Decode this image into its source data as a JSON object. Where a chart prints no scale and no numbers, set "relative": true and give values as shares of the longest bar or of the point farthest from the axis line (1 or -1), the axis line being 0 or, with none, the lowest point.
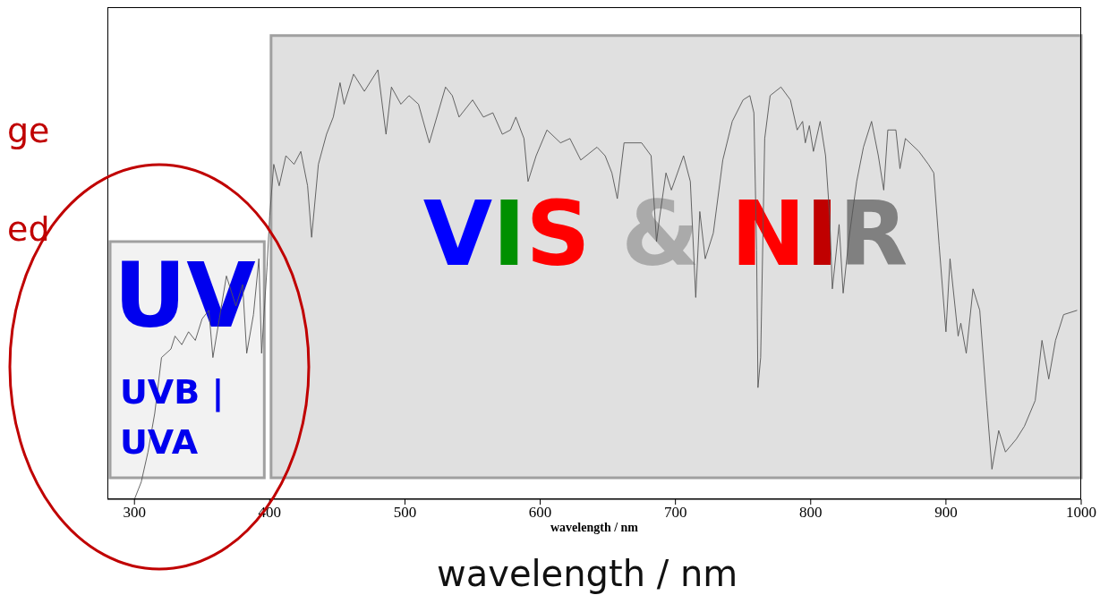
{
  "chart_data": {
    "type": "line",
    "relative": true,
    "xlabel": "wavelength / nm",
    "xlim": [
      280,
      1000
    ],
    "xticks": [
      300,
      400,
      500,
      600,
      700,
      800,
      900,
      1000
    ],
    "marker": "none",
    "line_style": "solid",
    "x": [
      300,
      305,
      310,
      315,
      320,
      327,
      330,
      335,
      340,
      345,
      350,
      355,
      358,
      368,
      375,
      380,
      383,
      388,
      392,
      394,
      398,
      400,
      403,
      407,
      412,
      418,
      423,
      428,
      431,
      436,
      442,
      447,
      452,
      455,
      462,
      470,
      480,
      486,
      490,
      497,
      503,
      510,
      518,
      530,
      535,
      540,
      550,
      558,
      565,
      572,
      578,
      582,
      588,
      591,
      597,
      605,
      615,
      622,
      630,
      642,
      648,
      653,
      657,
      662,
      675,
      682,
      686,
      688,
      693,
      697,
      706,
      711,
      715,
      718,
      722,
      728,
      735,
      742,
      750,
      755,
      758,
      760,
      761,
      763,
      766,
      770,
      778,
      785,
      790,
      794,
      796,
      799,
      802,
      807,
      811,
      814,
      816,
      821,
      824,
      828,
      834,
      839,
      845,
      850,
      854,
      857,
      863,
      866,
      870,
      880,
      887,
      891,
      895,
      900,
      903,
      909,
      911,
      915,
      920,
      925,
      930,
      934,
      939,
      944,
      952,
      958,
      966,
      971,
      976,
      981,
      987,
      997
    ],
    "series": [
      {
        "color": "#555555",
        "values": [
          0.0,
          0.04,
          0.11,
          0.2,
          0.33,
          0.35,
          0.38,
          0.36,
          0.39,
          0.37,
          0.42,
          0.44,
          0.33,
          0.52,
          0.45,
          0.5,
          0.34,
          0.43,
          0.56,
          0.34,
          0.54,
          0.66,
          0.78,
          0.73,
          0.8,
          0.78,
          0.81,
          0.73,
          0.61,
          0.78,
          0.85,
          0.89,
          0.97,
          0.92,
          0.99,
          0.95,
          1.0,
          0.85,
          0.96,
          0.92,
          0.94,
          0.92,
          0.83,
          0.96,
          0.94,
          0.89,
          0.93,
          0.89,
          0.9,
          0.85,
          0.86,
          0.89,
          0.84,
          0.74,
          0.8,
          0.86,
          0.83,
          0.84,
          0.79,
          0.82,
          0.8,
          0.76,
          0.7,
          0.83,
          0.83,
          0.8,
          0.6,
          0.65,
          0.76,
          0.72,
          0.8,
          0.74,
          0.47,
          0.67,
          0.56,
          0.62,
          0.79,
          0.88,
          0.93,
          0.94,
          0.9,
          0.58,
          0.26,
          0.33,
          0.84,
          0.94,
          0.96,
          0.93,
          0.86,
          0.88,
          0.83,
          0.87,
          0.81,
          0.88,
          0.8,
          0.66,
          0.49,
          0.64,
          0.48,
          0.6,
          0.74,
          0.82,
          0.88,
          0.8,
          0.72,
          0.86,
          0.86,
          0.77,
          0.84,
          0.81,
          0.78,
          0.76,
          0.59,
          0.39,
          0.56,
          0.38,
          0.41,
          0.34,
          0.49,
          0.44,
          0.23,
          0.07,
          0.16,
          0.11,
          0.14,
          0.17,
          0.23,
          0.37,
          0.28,
          0.37,
          0.43,
          0.44
        ]
      }
    ],
    "bands": [
      {
        "axis": "x",
        "from": 282,
        "to": 396,
        "label": "UV",
        "color": "#f2f2f2"
      },
      {
        "axis": "x",
        "from": 401,
        "to": 1000,
        "label": "VIS & NIR",
        "color": "#e0e0e0"
      }
    ],
    "annotations": [
      "UVB |",
      "UVA",
      "ge",
      "ed",
      "wavelength / nm"
    ]
  }
}
